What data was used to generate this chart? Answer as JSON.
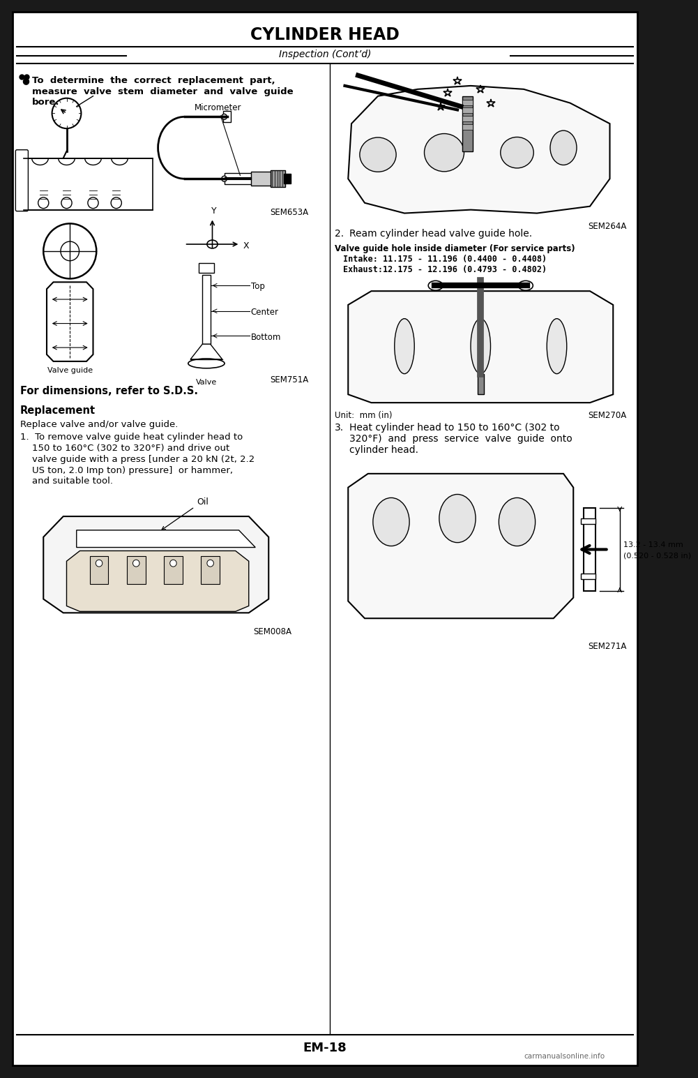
{
  "title": "CYLINDER HEAD",
  "subtitle": "Inspection (Cont’d)",
  "page_number": "EM-18",
  "bg_color": "#ffffff",
  "outer_bg": "#1a1a1a",
  "text_color": "#000000",
  "bullet_text_line1": "To  determine  the  correct  replacement  part,",
  "bullet_text_line2": "measure  valve  stem  diameter  and  valve  guide",
  "bullet_text_line3": "bore.",
  "sem653a": "SEM653A",
  "sem751a": "SEM751A",
  "sem008a": "SEM008A",
  "sem264a": "SEM264A",
  "sem270a": "SEM270A",
  "sem271a": "SEM271A",
  "micrometer_label": "Micrometer",
  "for_dimensions": "For dimensions, refer to S.D.S.",
  "replacement_title": "Replacement",
  "replacement_text": "Replace valve and/or valve guide.",
  "step1_line1": "1.  To remove valve guide heat cylinder head to",
  "step1_line2": "    150 to 160°C (302 to 320°F) and drive out",
  "step1_line3": "    valve guide with a press [under a 20 kN (2t, 2.2",
  "step1_line4": "    US ton, 2.0 Imp ton) pressure]  or hammer,",
  "step1_line5": "    and suitable tool.",
  "oil_label": "Oil",
  "step2_num": "2.",
  "step2_text": "Ream cylinder head valve guide hole.",
  "valve_guide_specs_title": "Valve guide hole inside diameter (For service parts)",
  "intake_label": "Intake:",
  "intake_val": "11.175 - 11.196 (0.4400 - 0.4408)",
  "exhaust_label": "Exhaust:",
  "exhaust_val": "12.175 - 12.196 (0.4793 - 0.4802)",
  "unit_label": "Unit:  mm (in)",
  "step3_num": "3.",
  "step3_line1": "Heat cylinder head to 150 to 160°C (302 to",
  "step3_line2": "320°F)  and  press  service  valve  guide  onto",
  "step3_line3": "cylinder head.",
  "dim_label_line1": "13.2 - 13.4 mm",
  "dim_label_line2": "(0.520 - 0.528 in)",
  "valve_guide_label": "Valve guide",
  "valve_label": "Valve",
  "top_label": "Top",
  "center_label": "Center",
  "bottom_label": "Bottom",
  "x_label": "X",
  "y_label": "Y",
  "watermark": "carmanualsonline.info"
}
